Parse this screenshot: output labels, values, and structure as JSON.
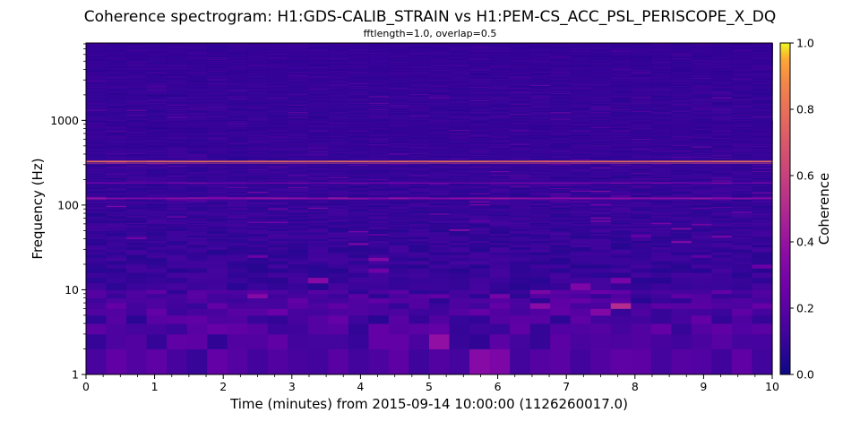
{
  "chart_data": {
    "type": "heatmap",
    "title": "Coherence spectrogram: H1:GDS-CALIB_STRAIN vs H1:PEM-CS_ACC_PSL_PERISCOPE_X_DQ",
    "subtitle": "fftlength=1.0, overlap=0.5",
    "xlabel": "Time (minutes) from 2015-09-14 10:00:00 (1126260017.0)",
    "ylabel": "Frequency (Hz)",
    "xlim": [
      0,
      10
    ],
    "ylim": [
      1,
      8192
    ],
    "yscale": "log",
    "xticks": [
      "0",
      "1",
      "2",
      "3",
      "4",
      "5",
      "6",
      "7",
      "8",
      "9",
      "10"
    ],
    "yticks": [
      {
        "value": 1,
        "label": "1"
      },
      {
        "value": 10,
        "label": "10"
      },
      {
        "value": 100,
        "label": "100"
      },
      {
        "value": 1000,
        "label": "1000"
      }
    ],
    "colorbar": {
      "label": "Coherence",
      "range": [
        0,
        1
      ],
      "ticks": [
        "0.0",
        "0.2",
        "0.4",
        "0.6",
        "0.8",
        "1.0"
      ],
      "colormap": "plasma"
    },
    "time_bins": 34,
    "background_coherence": 0.1,
    "features": [
      {
        "description": "strong persistent line",
        "frequency_hz": 331,
        "coherence": 0.8
      },
      {
        "description": "adjacent line",
        "frequency_hz": 316,
        "coherence": 0.65
      },
      {
        "description": "weak line",
        "frequency_hz": 121,
        "coherence": 0.35
      },
      {
        "description": "weak line",
        "frequency_hz": 183,
        "coherence": 0.28
      }
    ],
    "grid": false
  }
}
